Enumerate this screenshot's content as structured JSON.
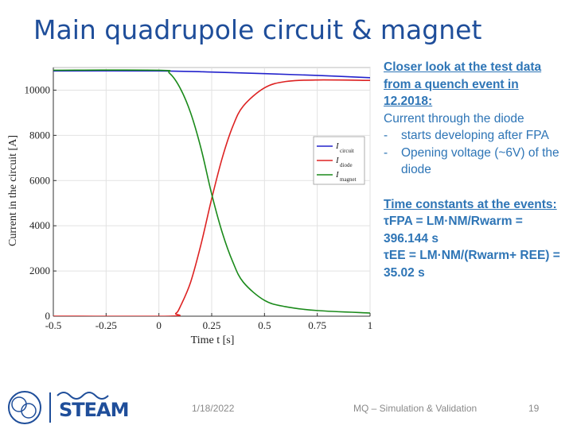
{
  "slide": {
    "title": "Main quadrupole circuit & magnet",
    "notes": {
      "heading_lines": [
        "Closer look at the test data",
        "from a quench event in",
        "12.2018:"
      ],
      "line4": "Current through the diode",
      "bullets": [
        "starts developing after FPA",
        "Opening voltage (~6V) of the diode"
      ],
      "tc_heading": "Time constants at the events:",
      "tau_fpa": "τFPA = LM·NM/Rwarm = 396.144 s",
      "tau_ee": "τEE = LM·NM/(Rwarm+ REE) = 35.02 s"
    },
    "footer": {
      "date": "1/18/2022",
      "title": "MQ – Simulation & Validation",
      "page": "19"
    },
    "logos": {
      "cern": "CERN",
      "steam": "STEAM"
    }
  },
  "chart_data": {
    "type": "line",
    "xlabel": "Time t [s]",
    "ylabel": "Current in the circuit [A]",
    "xlim": [
      -0.5,
      1
    ],
    "ylim": [
      0,
      11000
    ],
    "xticks": [
      -0.5,
      -0.25,
      0,
      0.25,
      0.5,
      0.75,
      1
    ],
    "xtick_labels": [
      "-0.5",
      "-0.25",
      "0",
      "0.25",
      "0.5",
      "0.75",
      "1"
    ],
    "yticks": [
      0,
      2000,
      4000,
      6000,
      8000,
      10000
    ],
    "ytick_labels": [
      "0",
      "2000",
      "4000",
      "6000",
      "8000",
      "10000"
    ],
    "grid": true,
    "legend_position": "right",
    "series": [
      {
        "name": "I circuit",
        "legend_main": "I",
        "legend_sub": "circuit",
        "color": "#2222cc",
        "x": [
          -0.5,
          0.0,
          0.25,
          0.5,
          0.75,
          1.0
        ],
        "y": [
          10850,
          10850,
          10800,
          10730,
          10650,
          10550
        ]
      },
      {
        "name": "I diode",
        "legend_main": "I",
        "legend_sub": "diode",
        "color": "#dd2222",
        "x": [
          -0.5,
          0.05,
          0.08,
          0.1,
          0.15,
          0.2,
          0.25,
          0.3,
          0.35,
          0.4,
          0.5,
          0.6,
          0.75,
          1.0
        ],
        "y": [
          0,
          0,
          120,
          400,
          1500,
          3200,
          5200,
          7000,
          8400,
          9300,
          10100,
          10380,
          10450,
          10430
        ]
      },
      {
        "name": "I magnet",
        "legend_main": "I",
        "legend_sub": "magnet",
        "color": "#1a8a1a",
        "x": [
          -0.5,
          0.0,
          0.05,
          0.1,
          0.15,
          0.2,
          0.25,
          0.3,
          0.35,
          0.4,
          0.5,
          0.6,
          0.75,
          1.0
        ],
        "y": [
          10880,
          10880,
          10750,
          10100,
          9000,
          7400,
          5400,
          3700,
          2400,
          1500,
          700,
          420,
          250,
          140
        ]
      }
    ]
  }
}
